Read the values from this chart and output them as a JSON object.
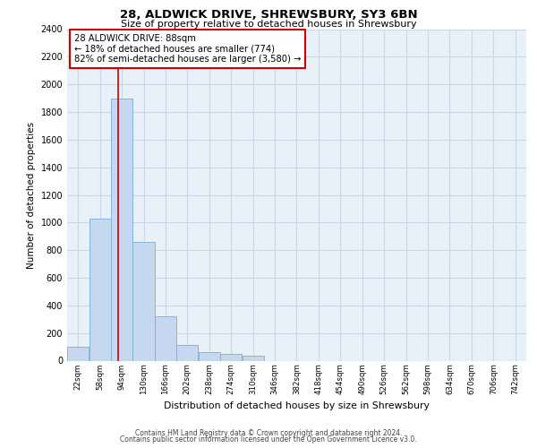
{
  "title": "28, ALDWICK DRIVE, SHREWSBURY, SY3 6BN",
  "subtitle": "Size of property relative to detached houses in Shrewsbury",
  "xlabel": "Distribution of detached houses by size in Shrewsbury",
  "ylabel": "Number of detached properties",
  "bar_color": "#c5d8f0",
  "bar_edge_color": "#7aafd4",
  "grid_color": "#c8d8ea",
  "background_color": "#e8f0f8",
  "vline_x": 88,
  "vline_color": "#cc0000",
  "annotation_text": "28 ALDWICK DRIVE: 88sqm\n← 18% of detached houses are smaller (774)\n82% of semi-detached houses are larger (3,580) →",
  "annotation_box_color": "#cc0000",
  "categories": [
    "22sqm",
    "58sqm",
    "94sqm",
    "130sqm",
    "166sqm",
    "202sqm",
    "238sqm",
    "274sqm",
    "310sqm",
    "346sqm",
    "382sqm",
    "418sqm",
    "454sqm",
    "490sqm",
    "526sqm",
    "562sqm",
    "598sqm",
    "634sqm",
    "670sqm",
    "706sqm",
    "742sqm"
  ],
  "bin_width": 36,
  "bin_starts": [
    4,
    40,
    76,
    112,
    148,
    184,
    220,
    256,
    292,
    328,
    364,
    400,
    436,
    472,
    508,
    544,
    580,
    616,
    652,
    688,
    724
  ],
  "bin_edges_full": [
    4,
    40,
    76,
    112,
    148,
    184,
    220,
    256,
    292,
    328,
    364,
    400,
    436,
    472,
    508,
    544,
    580,
    616,
    652,
    688,
    724,
    760
  ],
  "values": [
    100,
    1025,
    1900,
    860,
    320,
    115,
    60,
    50,
    35,
    0,
    0,
    0,
    0,
    0,
    0,
    0,
    0,
    0,
    0,
    0,
    0
  ],
  "ylim": [
    0,
    2400
  ],
  "yticks": [
    0,
    200,
    400,
    600,
    800,
    1000,
    1200,
    1400,
    1600,
    1800,
    2000,
    2200,
    2400
  ],
  "footer_line1": "Contains HM Land Registry data © Crown copyright and database right 2024.",
  "footer_line2": "Contains public sector information licensed under the Open Government Licence v3.0."
}
